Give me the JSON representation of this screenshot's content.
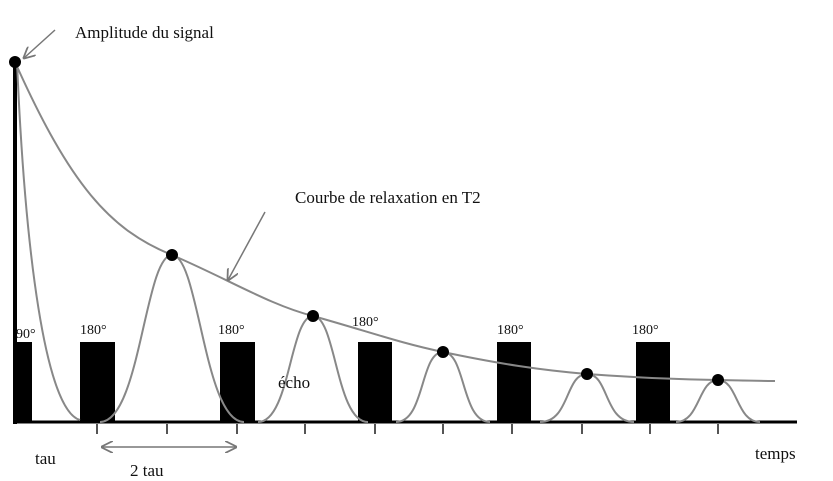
{
  "labels": {
    "amplitude": "Amplitude du signal",
    "curve": "Courbe de relaxation en T2",
    "echo": "écho",
    "tau": "tau",
    "two_tau": "2 tau",
    "time": "temps"
  },
  "pulses": [
    "90°",
    "180°",
    "180°",
    "180°",
    "180°",
    "180°"
  ]
}
